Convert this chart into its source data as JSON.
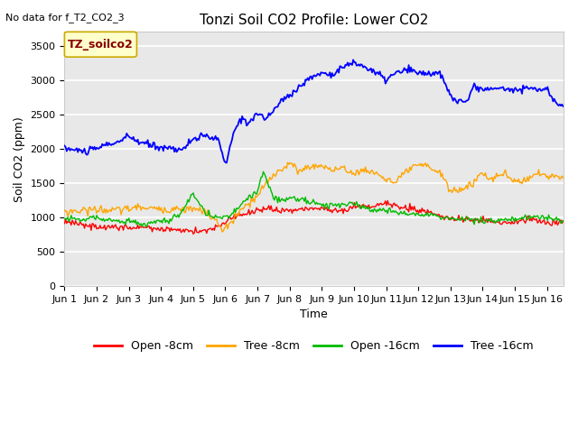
{
  "title": "Tonzi Soil CO2 Profile: Lower CO2",
  "subtitle": "No data for f_T2_CO2_3",
  "xlabel": "Time",
  "ylabel": "Soil CO2 (ppm)",
  "ylim": [
    0,
    3700
  ],
  "yticks": [
    0,
    500,
    1000,
    1500,
    2000,
    2500,
    3000,
    3500
  ],
  "legend_label": "TZ_soilco2",
  "series_labels": [
    "Open -8cm",
    "Tree -8cm",
    "Open -16cm",
    "Tree -16cm"
  ],
  "series_colors": [
    "#ff0000",
    "#ffa500",
    "#00bb00",
    "#0000ff"
  ],
  "fig_bg_color": "#ffffff",
  "plot_bg_color": "#e8e8e8",
  "grid_color": "#ffffff",
  "box_facecolor": "#ffffcc",
  "box_edgecolor": "#ccaa00",
  "box_textcolor": "#880000",
  "subtitle_fontsize": 8,
  "title_fontsize": 11,
  "ylabel_fontsize": 9,
  "xlabel_fontsize": 9,
  "tick_fontsize": 8,
  "legend_fontsize": 9
}
